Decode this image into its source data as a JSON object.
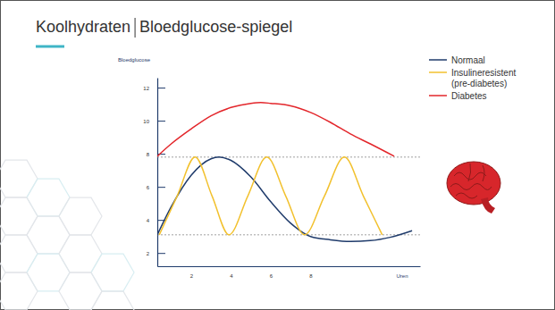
{
  "chart_data": {
    "type": "line",
    "title": "Koolhydraten",
    "subtitle": "Bloedglucose-spiegel",
    "y_label": "Bloedglucose",
    "x_label": "Uren",
    "xlim": [
      0.3,
      13.5
    ],
    "xticks": [
      2,
      4,
      6,
      8
    ],
    "ylim": [
      1.2,
      12.6
    ],
    "yticks": [
      2,
      4,
      6,
      8,
      10,
      12
    ],
    "grid": false,
    "legend": "right",
    "reference_lines": [
      7.8,
      3.1
    ],
    "series": [
      {
        "name": "Normaal",
        "color": "#1f3b6b",
        "x": [
          0.3,
          1,
          2,
          3,
          3.4,
          4,
          5,
          6,
          7,
          8,
          9,
          10,
          11,
          12,
          13.1
        ],
        "values": [
          3.1,
          4.8,
          6.7,
          7.7,
          7.8,
          7.6,
          6.6,
          5.1,
          3.8,
          3.0,
          2.8,
          2.7,
          2.75,
          2.95,
          3.35
        ]
      },
      {
        "name": "Insulineresistent (pre-diabetes)",
        "color": "#f2c12e",
        "x": [
          0.4,
          1.3,
          2.2,
          3.05,
          3.9,
          4.85,
          5.8,
          6.75,
          7.7,
          8.7,
          9.7,
          10.65,
          11.6
        ],
        "values": [
          3.1,
          5.45,
          7.8,
          5.45,
          3.1,
          5.45,
          7.8,
          5.45,
          3.1,
          5.45,
          7.8,
          5.45,
          3.1
        ]
      },
      {
        "name": "Diabetes",
        "color": "#e3262b",
        "x": [
          0.3,
          1,
          2,
          3,
          4,
          5,
          5.5,
          6,
          7,
          8,
          9,
          10,
          11,
          12.2
        ],
        "values": [
          7.85,
          8.6,
          9.5,
          10.3,
          10.8,
          11.05,
          11.1,
          11.05,
          10.9,
          10.5,
          9.9,
          9.2,
          8.6,
          7.85
        ]
      }
    ]
  }
}
